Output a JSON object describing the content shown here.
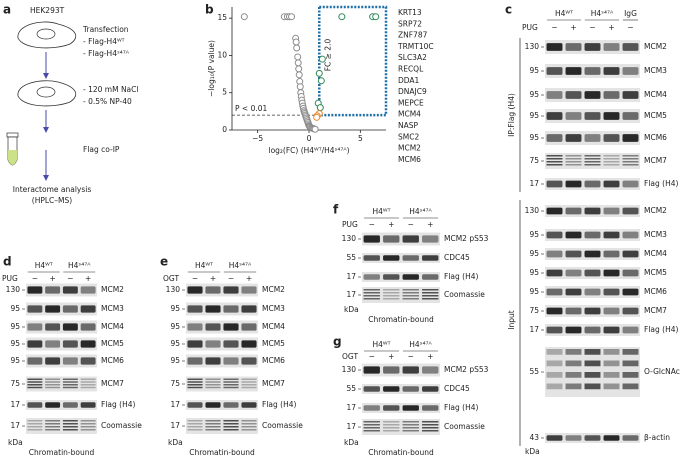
{
  "panel_a": {
    "label": "a",
    "cell_line": "HEK293T",
    "step1": [
      "Transfection",
      "- Flag-H4ᵂᵀ",
      "- Flag-H4ˢ⁴⁷ᴬ"
    ],
    "step2": [
      "- 120 mM NaCl",
      "- 0.5% NP-40"
    ],
    "step3": "Flag co-IP",
    "step4": [
      "Interactome analysis",
      "(HPLC–MS)"
    ]
  },
  "chart_data": {
    "type": "scatter",
    "panel_label": "b",
    "xlabel": "log₂(FC) (H4ᵂᵀ/H4ˢ⁴⁷ᴬ)",
    "ylabel": "−log₁₀(P value)",
    "xlim": [
      -7.5,
      7.5
    ],
    "ylim": [
      0,
      16.5
    ],
    "xticks": [
      {
        "value": -5,
        "label": "−5"
      },
      0,
      5
    ],
    "yticks": [
      0,
      5,
      10,
      15
    ],
    "series": [
      {
        "color": "#8c8c8c",
        "x": [
          -6.3,
          -2.4,
          -2.1,
          -1.9,
          -1.7,
          -1.3,
          -1.25,
          -1.2,
          -1.1,
          -1.05,
          -1.0,
          -0.95,
          -0.9,
          -0.85,
          -0.8,
          -0.75,
          -0.7,
          -0.65,
          -0.6,
          -0.55,
          -0.5,
          -0.45,
          -0.4,
          -0.35,
          -0.3,
          -0.25,
          -0.2,
          -0.15,
          -0.1,
          -0.05,
          0,
          0.05,
          0.1,
          0.2,
          0.3,
          0.4,
          0.5,
          0.6
        ],
        "values": [
          15.2,
          15.2,
          15.2,
          15.2,
          15.2,
          12.3,
          11.8,
          11.0,
          9.8,
          9.0,
          8.2,
          7.4,
          6.5,
          5.8,
          5.0,
          4.5,
          4.0,
          3.6,
          3.2,
          2.9,
          2.6,
          2.4,
          2.2,
          2.0,
          1.8,
          1.6,
          1.4,
          1.2,
          1.0,
          0.8,
          0.6,
          0.5,
          0.4,
          0.3,
          0.25,
          0.2,
          0.15,
          0.1
        ]
      },
      {
        "color": "#2e8b57",
        "x": [
          3.2,
          6.2,
          6.5,
          1.3,
          1.0,
          1.2,
          0.9,
          1.1
        ],
        "values": [
          15.2,
          15.2,
          15.2,
          9.5,
          7.6,
          6.6,
          3.6,
          3.0
        ]
      },
      {
        "color": "#e8892b",
        "x": [
          1.0,
          0.8,
          0.75
        ],
        "values": [
          2.2,
          1.9,
          1.7
        ]
      }
    ],
    "annotations": [
      {
        "text": "P < 0.01",
        "y": 2
      },
      {
        "text": "FC ≥ 2.0",
        "x": 1
      }
    ],
    "threshold_color": "#1f6fa8",
    "highlighted": [
      {
        "text": "KRT13",
        "color": "#2e8b57"
      },
      {
        "text": "SRP72",
        "color": "#2e8b57"
      },
      {
        "text": "ZNF787",
        "color": "#2e8b57"
      },
      {
        "text": "TRMT10C",
        "color": "#2e8b57"
      },
      {
        "text": "SLC3A2",
        "color": "#2e8b57"
      },
      {
        "text": "RECQL",
        "color": "#2e8b57"
      },
      {
        "text": "DDA1",
        "color": "#2e8b57"
      },
      {
        "text": "DNAJC9",
        "color": "#2e8b57"
      },
      {
        "text": "MEPCE",
        "color": "#2e8b57"
      },
      {
        "text": "MCM4",
        "color": "#e8892b"
      },
      {
        "text": "NASP",
        "color": "#2e8b57"
      },
      {
        "text": "SMC2",
        "color": "#2e8b57"
      },
      {
        "text": "MCM2",
        "color": "#e8892b"
      },
      {
        "text": "MCM6",
        "color": "#e8892b"
      }
    ]
  },
  "panel_c": {
    "label": "c",
    "treatment": "PUG",
    "groups": [
      "H4ᵂᵀ",
      "H4ˢ⁴⁷ᴬ",
      "IgG"
    ],
    "signs": [
      "−",
      "+",
      "−",
      "+",
      "−"
    ],
    "ip_label": "IP:Flag (H4)",
    "ip_rows": [
      {
        "marker": 130,
        "name": "MCM2"
      },
      {
        "marker": 95,
        "name": "MCM3"
      },
      {
        "marker": 95,
        "name": "MCM4"
      },
      {
        "marker": 95,
        "name": "MCM5"
      },
      {
        "marker": 95,
        "name": "MCM6"
      },
      {
        "marker": 75,
        "name": "MCM7"
      },
      {
        "marker": 17,
        "name": "Flag (H4)"
      }
    ],
    "input_label": "Input",
    "input_rows": [
      {
        "marker": 130,
        "name": "MCM2"
      },
      {
        "marker": 95,
        "name": "MCM3"
      },
      {
        "marker": 95,
        "name": "MCM4"
      },
      {
        "marker": 95,
        "name": "MCM5"
      },
      {
        "marker": 95,
        "name": "MCM6"
      },
      {
        "marker": 75,
        "name": "MCM7"
      },
      {
        "marker": 17,
        "name": "Flag (H4)"
      },
      {
        "marker": 55,
        "name": "O-GlcNAc"
      },
      {
        "marker": 43,
        "name": "β-actin"
      }
    ],
    "unit": "kDa"
  },
  "panel_d": {
    "label": "d",
    "treatment": "PUG",
    "groups": [
      "H4ᵂᵀ",
      "H4ˢ⁴⁷ᴬ"
    ],
    "signs": [
      "−",
      "+",
      "−",
      "+"
    ],
    "rows": [
      {
        "marker": 130,
        "name": "MCM2"
      },
      {
        "marker": 95,
        "name": "MCM3"
      },
      {
        "marker": 95,
        "name": "MCM4"
      },
      {
        "marker": 95,
        "name": "MCM5"
      },
      {
        "marker": 95,
        "name": "MCM6"
      },
      {
        "marker": 75,
        "name": "MCM7"
      },
      {
        "marker": 17,
        "name": "Flag (H4)"
      },
      {
        "marker": 17,
        "name": "Coomassie"
      }
    ],
    "unit": "kDa",
    "footer": "Chromatin-bound"
  },
  "panel_e": {
    "label": "e",
    "treatment": "OGT",
    "groups": [
      "H4ᵂᵀ",
      "H4ˢ⁴⁷ᴬ"
    ],
    "signs": [
      "−",
      "+",
      "−",
      "+"
    ],
    "rows": [
      {
        "marker": 130,
        "name": "MCM2"
      },
      {
        "marker": 95,
        "name": "MCM3"
      },
      {
        "marker": 95,
        "name": "MCM4"
      },
      {
        "marker": 95,
        "name": "MCM5"
      },
      {
        "marker": 95,
        "name": "MCM6"
      },
      {
        "marker": 75,
        "name": "MCM7"
      },
      {
        "marker": 17,
        "name": "Flag (H4)"
      },
      {
        "marker": 17,
        "name": "Coomassie"
      }
    ],
    "unit": "kDa",
    "footer": "Chromatin-bound"
  },
  "panel_f": {
    "label": "f",
    "treatment": "PUG",
    "groups": [
      "H4ᵂᵀ",
      "H4ˢ⁴⁷ᴬ"
    ],
    "signs": [
      "−",
      "+",
      "−",
      "+"
    ],
    "rows": [
      {
        "marker": 130,
        "name": "MCM2 pS53"
      },
      {
        "marker": 55,
        "name": "CDC45"
      },
      {
        "marker": 17,
        "name": "Flag (H4)"
      },
      {
        "marker": 17,
        "name": "Coomassie"
      }
    ],
    "unit": "kDa",
    "footer": "Chromatin-bound"
  },
  "panel_g": {
    "label": "g",
    "treatment": "OGT",
    "groups": [
      "H4ᵂᵀ",
      "H4ˢ⁴⁷ᴬ"
    ],
    "signs": [
      "−",
      "+",
      "−",
      "+"
    ],
    "rows": [
      {
        "marker": 130,
        "name": "MCM2 pS53"
      },
      {
        "marker": 55,
        "name": "CDC45"
      },
      {
        "marker": 17,
        "name": "Flag (H4)"
      },
      {
        "marker": 17,
        "name": "Coomassie"
      }
    ],
    "unit": "kDa",
    "footer": "Chromatin-bound"
  }
}
